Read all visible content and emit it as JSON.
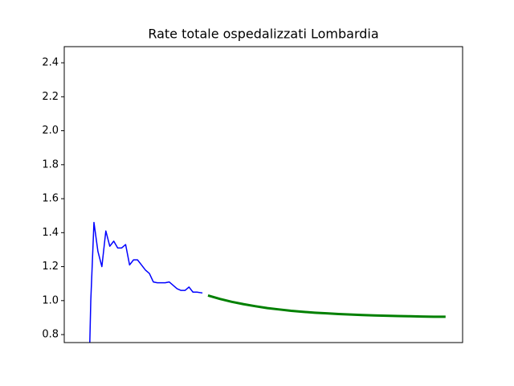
{
  "chart_data": {
    "type": "line",
    "title": "Rate totale ospedalizzati Lombardia",
    "xlim": [
      -6.3,
      94.3
    ],
    "ylim": [
      0.753,
      2.495
    ],
    "yticks": [
      0.8,
      {
        "value": 1,
        "label": "1.0"
      },
      1.2,
      1.4,
      1.6,
      1.8,
      {
        "value": 2,
        "label": "2.0"
      },
      2.2,
      2.4
    ],
    "series": [
      {
        "color": "#0000ff",
        "width": 1.5,
        "x": [
          0,
          0.4,
          1.2,
          2.2,
          3.2,
          4.2,
          5.2,
          6.2,
          7.2,
          8.2,
          9.2,
          10.2,
          11.2,
          12.2,
          13.2,
          14.2,
          15.2,
          16.2,
          17.2,
          18.2,
          19.2,
          20.2,
          21.2,
          22.2,
          23.2,
          24.2,
          25.2,
          26.2,
          27.2,
          28.6
        ],
        "values": [
          0.6,
          1.0,
          1.46,
          1.29,
          1.2,
          1.41,
          1.32,
          1.35,
          1.31,
          1.31,
          1.33,
          1.21,
          1.24,
          1.24,
          1.21,
          1.18,
          1.16,
          1.11,
          1.105,
          1.105,
          1.105,
          1.11,
          1.09,
          1.07,
          1.06,
          1.06,
          1.08,
          1.05,
          1.05,
          1.045
        ]
      },
      {
        "color": "#008000",
        "width": 3,
        "x": [
          30,
          33,
          36,
          39,
          42,
          45,
          48,
          51,
          54,
          57,
          60,
          63,
          66,
          69,
          72,
          75,
          78,
          81,
          84,
          87,
          90
        ],
        "values": [
          1.03,
          1.01,
          0.993,
          0.979,
          0.967,
          0.956,
          0.948,
          0.94,
          0.934,
          0.929,
          0.925,
          0.921,
          0.918,
          0.915,
          0.913,
          0.911,
          0.909,
          0.908,
          0.906,
          0.905,
          0.905
        ]
      }
    ]
  }
}
